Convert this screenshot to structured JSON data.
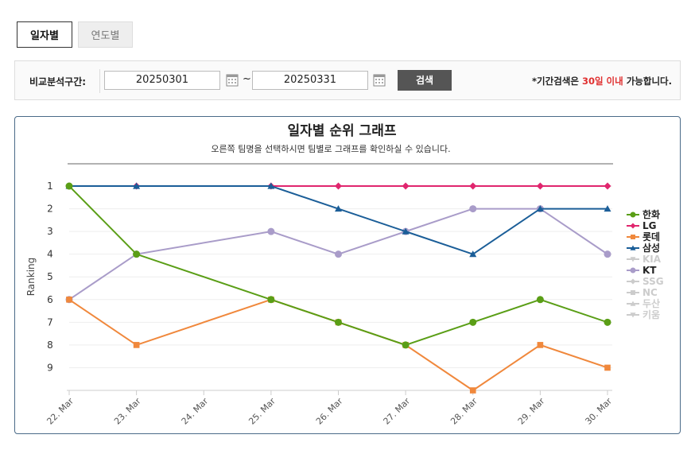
{
  "tabs": [
    "일자별",
    "연도별"
  ],
  "search": {
    "label": "비교분석구간:",
    "start": "20250301",
    "separator": "~",
    "end": "20250331",
    "button": "검색",
    "note_prefix": "*기간검색은 ",
    "note_highlight": "30일 이내",
    "note_suffix": " 가능합니다."
  },
  "chart_data": {
    "type": "line",
    "title": "일자별 순위 그래프",
    "subtitle": "오른쪽 팀명을 선택하시면 팀별로 그래프를 확인하실 수 있습니다.",
    "y_label": "Ranking",
    "categories": [
      "22. Mar",
      "23. Mar",
      "24. Mar",
      "25. Mar",
      "26. Mar",
      "27. Mar",
      "28. Mar",
      "29. Mar",
      "30. Mar"
    ],
    "ylim": [
      10,
      0.5
    ],
    "yticks": [
      1,
      2,
      3,
      4,
      5,
      6,
      7,
      8,
      9
    ],
    "grid": true,
    "span_gaps": true,
    "legend": "right",
    "series": [
      {
        "name": "한화",
        "color": "#5a9e16",
        "marker": "circle",
        "visible": true,
        "values": [
          1,
          4,
          null,
          6,
          7,
          8,
          7,
          6,
          7
        ]
      },
      {
        "name": "LG",
        "color": "#e0266e",
        "marker": "diamond",
        "visible": true,
        "values": [
          1,
          1,
          null,
          1,
          1,
          1,
          1,
          1,
          1
        ]
      },
      {
        "name": "롯데",
        "color": "#f0883c",
        "marker": "square",
        "visible": true,
        "values": [
          6,
          8,
          null,
          6,
          7,
          8,
          10,
          8,
          9
        ]
      },
      {
        "name": "삼성",
        "color": "#1b5e98",
        "marker": "triangle",
        "visible": true,
        "values": [
          1,
          1,
          null,
          1,
          2,
          3,
          4,
          2,
          2
        ]
      },
      {
        "name": "KIA",
        "color": "#cccccc",
        "marker": "triangle-down",
        "visible": false
      },
      {
        "name": "KT",
        "color": "#a99cc9",
        "marker": "circle",
        "visible": true,
        "values": [
          6,
          4,
          null,
          3,
          4,
          3,
          2,
          2,
          4
        ]
      },
      {
        "name": "SSG",
        "color": "#cccccc",
        "marker": "diamond",
        "visible": false
      },
      {
        "name": "NC",
        "color": "#cccccc",
        "marker": "square",
        "visible": false
      },
      {
        "name": "두산",
        "color": "#cccccc",
        "marker": "triangle",
        "visible": false
      },
      {
        "name": "키움",
        "color": "#cccccc",
        "marker": "triangle-down",
        "visible": false
      }
    ]
  }
}
